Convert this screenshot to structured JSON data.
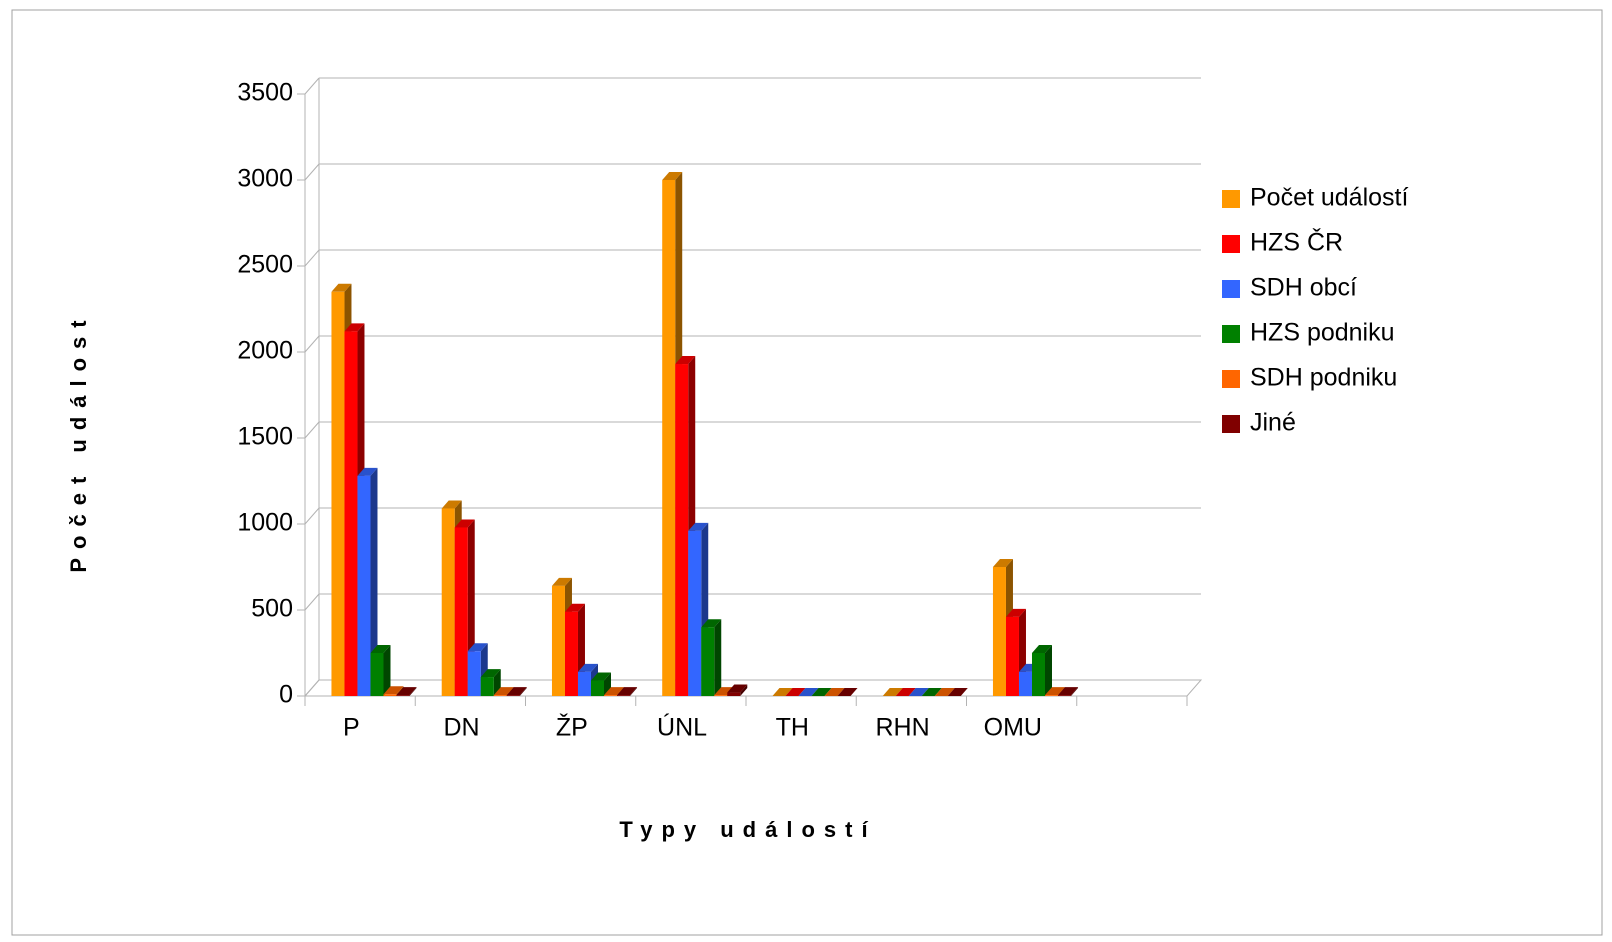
{
  "chart_data": {
    "type": "bar3d",
    "x_label": "Typy událostí",
    "y_label": "Počet událost",
    "categories": [
      "P",
      "DN",
      "ŽP",
      "ÚNL",
      "TH",
      "RHN",
      "OMU",
      null
    ],
    "series": [
      {
        "name": "Počet událostí",
        "color": "#ff9900",
        "values": [
          2350,
          1090,
          640,
          3000,
          0,
          0,
          750,
          null
        ]
      },
      {
        "name": "HZS ČR",
        "color": "#ff0000",
        "values": [
          2120,
          980,
          490,
          1930,
          0,
          0,
          460,
          null
        ]
      },
      {
        "name": "SDH obcí",
        "color": "#3366ff",
        "values": [
          1280,
          260,
          140,
          960,
          0,
          0,
          140,
          null
        ]
      },
      {
        "name": "HZS podniku",
        "color": "#008000",
        "values": [
          250,
          110,
          90,
          400,
          0,
          0,
          250,
          null
        ]
      },
      {
        "name": "SDH podniku",
        "color": "#ff6600",
        "values": [
          10,
          5,
          5,
          5,
          0,
          0,
          5,
          null
        ]
      },
      {
        "name": "Jiné",
        "color": "#800000",
        "values": [
          5,
          5,
          5,
          20,
          0,
          0,
          5,
          null
        ]
      }
    ],
    "ylim": [
      0,
      3500
    ],
    "yticks": [
      0,
      500,
      1000,
      1500,
      2000,
      2500,
      3000,
      3500
    ],
    "grid": true,
    "legend": "right"
  }
}
